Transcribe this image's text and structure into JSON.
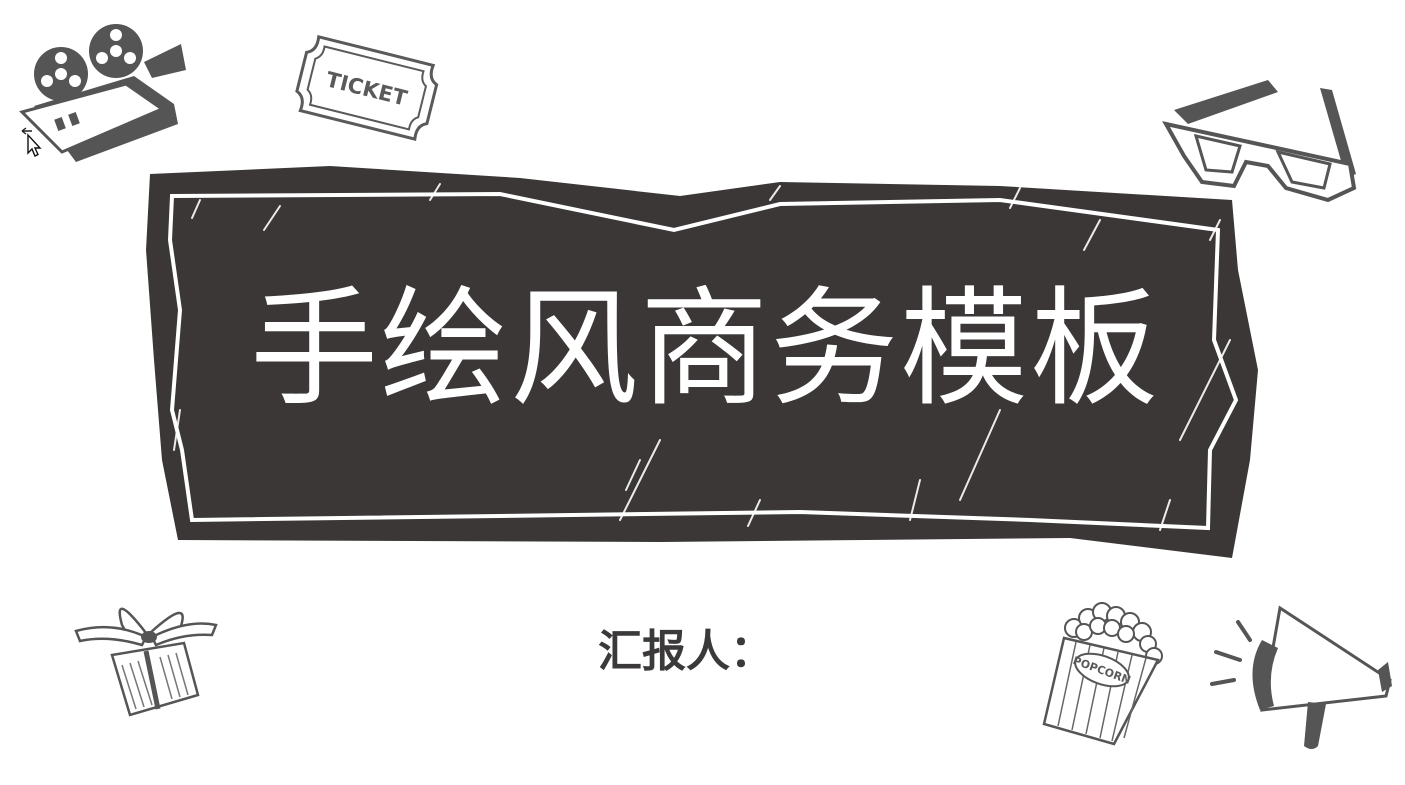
{
  "slide": {
    "title": "手绘风商务模板",
    "reporter_label": "汇报人："
  },
  "decorations": {
    "ticket_text": "TICKET",
    "popcorn_text": "POPCORN"
  },
  "icons": [
    "movie-camera-icon",
    "ticket-icon",
    "3d-glasses-icon",
    "gift-box-icon",
    "popcorn-icon",
    "megaphone-icon",
    "mouse-cursor-icon"
  ],
  "colors": {
    "background": "#ffffff",
    "banner_fill": "#3b3737",
    "title_text": "#ffffff",
    "reporter_text": "#3b3939",
    "doodle_dark": "#555555"
  }
}
